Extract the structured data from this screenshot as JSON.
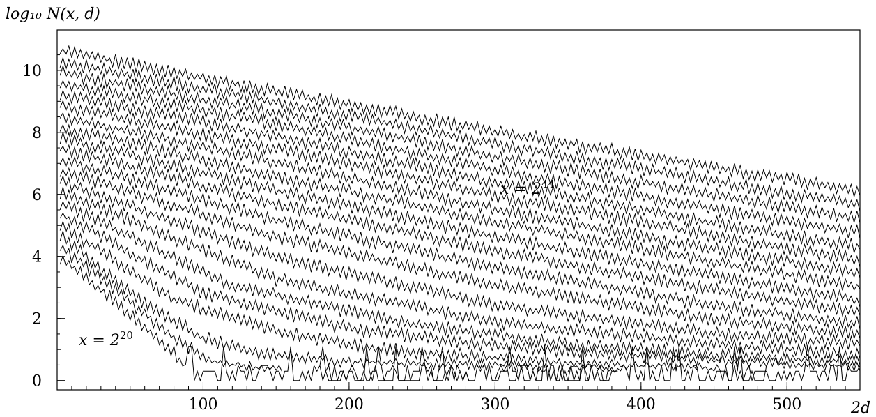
{
  "chart_data": {
    "type": "line",
    "ylabel": "log₁₀ N(x, d)",
    "xlabel": "2d",
    "xlim": [
      0,
      550
    ],
    "ylim": [
      -0.3,
      11.3
    ],
    "x_ticks": [
      100,
      200,
      300,
      400,
      500
    ],
    "x_tick_labels": [
      "100",
      "200",
      "300",
      "400",
      "500"
    ],
    "y_ticks": [
      0,
      2,
      4,
      6,
      8,
      10
    ],
    "y_tick_labels": [
      "0",
      "2",
      "4",
      "6",
      "8",
      "10"
    ],
    "grid": false,
    "x_step": 2,
    "annotations": [
      {
        "text_base": "x = 2",
        "text_exp": "20",
        "x": 15,
        "y": 1.3
      },
      {
        "text_base": "x = 2",
        "text_exp": "44",
        "x": 303,
        "y": 6.05
      }
    ],
    "series": [
      {
        "x_start": 2,
        "y_start": 3.9,
        "ranges": [
          [
            2,
            380
          ]
        ],
        "knots": [
          [
            2,
            3.9
          ],
          [
            40,
            2.45
          ],
          [
            80,
            0.85
          ],
          [
            90,
            0.3
          ],
          [
            110,
            0.05
          ],
          [
            380,
            0
          ]
        ]
      },
      {
        "x_start": 2,
        "y_start": 4.25,
        "ranges": [
          [
            2,
            154
          ],
          [
            180,
            282
          ],
          [
            300,
            384
          ]
        ],
        "knots": [
          [
            2,
            4.25
          ],
          [
            40,
            2.85
          ],
          [
            80,
            1.3
          ],
          [
            100,
            0.7
          ],
          [
            115,
            0.45
          ],
          [
            384,
            0
          ]
        ]
      },
      {
        "x_start": 2,
        "y_start": 4.6,
        "ranges": [
          [
            2,
            336
          ],
          [
            350,
            486
          ]
        ],
        "knots": [
          [
            2,
            4.6
          ],
          [
            60,
            2.4
          ],
          [
            100,
            1.3
          ],
          [
            140,
            0.8
          ],
          [
            200,
            0.55
          ],
          [
            486,
            0.25
          ]
        ]
      },
      {
        "x_start": 2,
        "y_start": 4.95,
        "ranges": [
          [
            2,
            550
          ]
        ],
        "knots": [
          [
            2,
            4.95
          ],
          [
            80,
            2.55
          ],
          [
            150,
            1.5
          ],
          [
            220,
            0.95
          ],
          [
            330,
            0.55
          ],
          [
            550,
            0.2
          ]
        ]
      },
      {
        "x_start": 2,
        "y_start": 5.3,
        "ranges": [
          [
            2,
            550
          ]
        ],
        "knots": [
          [
            2,
            5.3
          ],
          [
            100,
            2.75
          ],
          [
            200,
            1.6
          ],
          [
            300,
            1.05
          ],
          [
            420,
            0.65
          ],
          [
            550,
            0.4
          ]
        ]
      },
      {
        "x_start": 2,
        "y_start": 5.65,
        "ranges": [
          [
            2,
            550
          ]
        ],
        "knots": [
          [
            2,
            5.65
          ],
          [
            120,
            3.0
          ],
          [
            240,
            1.75
          ],
          [
            360,
            1.05
          ],
          [
            450,
            0.75
          ],
          [
            550,
            0.55
          ]
        ]
      },
      {
        "x_start": 2,
        "y_start": 6.0,
        "ranges": [
          [
            2,
            550
          ]
        ],
        "knots": [
          [
            2,
            6.0
          ],
          [
            150,
            3.2
          ],
          [
            300,
            1.8
          ],
          [
            450,
            1.1
          ],
          [
            550,
            0.75
          ]
        ]
      },
      {
        "x_start": 2,
        "y_start": 6.35,
        "ranges": [
          [
            2,
            550
          ]
        ],
        "knots": [
          [
            2,
            6.35
          ],
          [
            150,
            3.9
          ],
          [
            300,
            2.35
          ],
          [
            450,
            1.45
          ],
          [
            550,
            1.1
          ]
        ]
      },
      {
        "x_start": 2,
        "y_start": 6.7,
        "ranges": [
          [
            2,
            550
          ]
        ],
        "knots": [
          [
            2,
            6.7
          ],
          [
            150,
            4.55
          ],
          [
            300,
            3.0
          ],
          [
            450,
            1.9
          ],
          [
            550,
            1.45
          ]
        ]
      },
      {
        "x_start": 2,
        "y_start": 7.05,
        "ranges": [
          [
            2,
            550
          ]
        ],
        "knots": [
          [
            2,
            7.05
          ],
          [
            150,
            5.1
          ],
          [
            300,
            3.55
          ],
          [
            450,
            2.35
          ],
          [
            550,
            1.75
          ]
        ]
      },
      {
        "x_start": 2,
        "y_start": 7.4,
        "ranges": [
          [
            2,
            550
          ]
        ],
        "knots": [
          [
            2,
            7.4
          ],
          [
            150,
            5.6
          ],
          [
            300,
            4.1
          ],
          [
            450,
            2.85
          ],
          [
            550,
            2.1
          ]
        ]
      },
      {
        "x_start": 2,
        "y_start": 7.75,
        "ranges": [
          [
            2,
            550
          ]
        ],
        "knots": [
          [
            2,
            7.75
          ],
          [
            150,
            6.05
          ],
          [
            300,
            4.55
          ],
          [
            450,
            3.3
          ],
          [
            550,
            2.5
          ]
        ]
      },
      {
        "x_start": 2,
        "y_start": 8.1,
        "ranges": [
          [
            2,
            550
          ]
        ],
        "knots": [
          [
            2,
            8.1
          ],
          [
            150,
            6.5
          ],
          [
            300,
            5.05
          ],
          [
            450,
            3.75
          ],
          [
            550,
            2.95
          ]
        ]
      },
      {
        "x_start": 2,
        "y_start": 8.45,
        "ranges": [
          [
            2,
            550
          ]
        ],
        "knots": [
          [
            2,
            8.45
          ],
          [
            150,
            6.95
          ],
          [
            300,
            5.45
          ],
          [
            450,
            4.15
          ],
          [
            550,
            3.4
          ]
        ]
      },
      {
        "x_start": 2,
        "y_start": 8.8,
        "ranges": [
          [
            2,
            550
          ]
        ],
        "knots": [
          [
            2,
            8.8
          ],
          [
            150,
            7.4
          ],
          [
            300,
            5.9
          ],
          [
            450,
            4.6
          ],
          [
            550,
            3.8
          ]
        ]
      },
      {
        "x_start": 2,
        "y_start": 9.15,
        "ranges": [
          [
            2,
            550
          ]
        ],
        "knots": [
          [
            2,
            9.15
          ],
          [
            150,
            7.8
          ],
          [
            300,
            6.3
          ],
          [
            450,
            5.0
          ],
          [
            550,
            4.25
          ]
        ]
      },
      {
        "x_start": 2,
        "y_start": 9.5,
        "ranges": [
          [
            2,
            550
          ]
        ],
        "knots": [
          [
            2,
            9.5
          ],
          [
            150,
            8.2
          ],
          [
            300,
            6.7
          ],
          [
            450,
            5.45
          ],
          [
            550,
            4.7
          ]
        ]
      },
      {
        "x_start": 2,
        "y_start": 9.85,
        "ranges": [
          [
            2,
            550
          ]
        ],
        "knots": [
          [
            2,
            9.85
          ],
          [
            150,
            8.55
          ],
          [
            300,
            7.15
          ],
          [
            450,
            5.9
          ],
          [
            550,
            5.15
          ]
        ]
      },
      {
        "x_start": 2,
        "y_start": 10.2,
        "ranges": [
          [
            2,
            550
          ]
        ],
        "knots": [
          [
            2,
            10.2
          ],
          [
            150,
            8.9
          ],
          [
            300,
            7.55
          ],
          [
            450,
            6.35
          ],
          [
            550,
            5.6
          ]
        ]
      },
      {
        "x_start": 2,
        "y_start": 10.55,
        "ranges": [
          [
            2,
            550
          ]
        ],
        "knots": [
          [
            2,
            10.55
          ],
          [
            150,
            9.25
          ],
          [
            300,
            7.95
          ],
          [
            450,
            6.8
          ],
          [
            550,
            6.05
          ]
        ]
      }
    ]
  }
}
